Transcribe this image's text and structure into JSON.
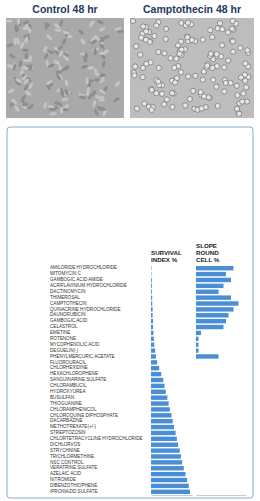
{
  "images": [
    {
      "label": "Control 48 hr"
    },
    {
      "label": "Camptothecin 48 hr"
    }
  ],
  "chart_data": {
    "type": "bar",
    "orientation": "horizontal",
    "tick_labels": false,
    "color": "#4a8fd6",
    "categories": [
      "AMILORIDE HYDROCHLORIDE",
      "MITOMYCIN C",
      "GAMBOGIC ACID AMIDE",
      "ACRIFLAVINIUM HYDROCHLORIDE",
      "DACTINOMYCIN",
      "THIMEROSAL",
      "CAMPTOTHECIN",
      "QUINACRINE HYDROCHLORIDE",
      "DAUNORUBICIN",
      "GAMBOGIC ACID",
      "CELASTROL",
      "EMETINE",
      "ROTENONE",
      "MYCOPHENOLIC ACID",
      "DEGUELIN(-)",
      "PHENYLMERCURIC ACETATE",
      "FLUOROURACIL",
      "CHLORHEXIDINE",
      "HEXACHLOROPHENE",
      "SANGUINARINE SULFATE",
      "CHLORAMBUCIL",
      "HYDROXYUREA",
      "BUSULFAN",
      "THIOGUANINE",
      "CHLORAMPHENICOL",
      "CHLOROQUINE DIPHOSPHATE",
      "DACARBAZINE",
      "METHOTREXATE(+/-)",
      "STREPTOZOSIN",
      "CHLORTETRACYCLINE HYDROCHLORIDE",
      "DICHLORVOS",
      "STRYCHNINE",
      "TRICHLORMETHINE",
      "NSC CONTROL",
      "VERATRINE SULFATE",
      "AZELAIC ACID",
      "NITROMIDE",
      "DIBENZOTHIOPHENE",
      "IPRONIAZID SULFATE"
    ],
    "series": [
      {
        "name": "SURVIVAL INDEX %",
        "xlim": [
          0,
          100
        ],
        "values": [
          1,
          1,
          2,
          2,
          2,
          3,
          3,
          4,
          4,
          5,
          5,
          6,
          7,
          8,
          10,
          12,
          15,
          20,
          25,
          30,
          33,
          36,
          40,
          43,
          46,
          50,
          53,
          56,
          60,
          63,
          66,
          70,
          73,
          76,
          80,
          84,
          88,
          92,
          95
        ]
      },
      {
        "name": "SLOPE ROUND CELL %",
        "xlim": [
          0,
          100
        ],
        "values": [
          75,
          60,
          70,
          55,
          45,
          70,
          85,
          75,
          65,
          60,
          55,
          10,
          5,
          5,
          5,
          45,
          0,
          0,
          0,
          0,
          0,
          0,
          0,
          0,
          0,
          0,
          0,
          0,
          0,
          0,
          0,
          0,
          0,
          0,
          0,
          0,
          0,
          0,
          0
        ]
      }
    ]
  }
}
